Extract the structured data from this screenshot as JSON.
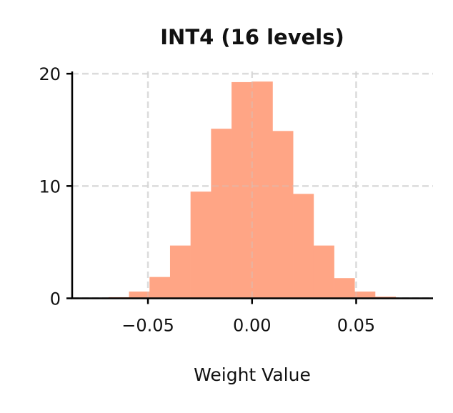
{
  "chart_data": {
    "type": "bar",
    "title": "INT4 (16 levels)",
    "xlabel": "Weight Value",
    "ylabel": "",
    "bin_edges": [
      -0.06895,
      -0.0591,
      -0.04925,
      -0.0394,
      -0.02955,
      -0.0197,
      -0.00985,
      0,
      0.00985,
      0.0197,
      0.02955,
      0.0394,
      0.04925,
      0.0591,
      0.06895
    ],
    "values": [
      0.1,
      0.6,
      1.9,
      4.7,
      9.5,
      15.1,
      19.25,
      19.3,
      14.9,
      9.3,
      4.7,
      1.8,
      0.6,
      0.15
    ],
    "xlim": [
      -0.0864,
      0.0869
    ],
    "ylim": [
      0,
      20.2
    ],
    "xticks": [
      -0.05,
      0.0,
      0.05
    ],
    "xtick_labels": [
      "−0.05",
      "0.00",
      "0.05"
    ],
    "yticks": [
      0,
      10,
      20
    ],
    "ytick_labels": [
      "0",
      "10",
      "20"
    ],
    "grid": true,
    "grid_style": "dashed",
    "bar_color": "#FFA585",
    "grid_color": "#E6E6E6"
  }
}
